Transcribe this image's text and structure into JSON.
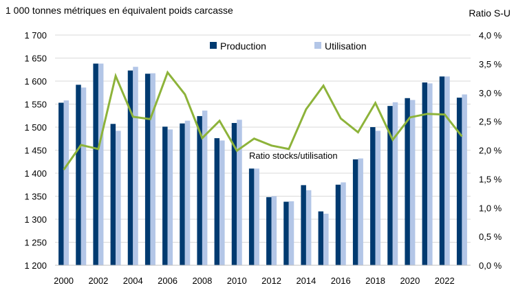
{
  "chart_data": {
    "type": "bar",
    "title": "",
    "ylabel_left": "1 000 tonnes métriques en équivalent poids carcasse",
    "ylabel_right": "Ratio S-U",
    "xlabel": "",
    "ylim_left": [
      1200,
      1700
    ],
    "ylim_right": [
      0.0,
      4.0
    ],
    "yticks_left": [
      "1 200",
      "1 250",
      "1 300",
      "1 350",
      "1 400",
      "1 450",
      "1 500",
      "1 550",
      "1 600",
      "1 650",
      "1 700"
    ],
    "yticks_right": [
      "0,0 %",
      "0,5 %",
      "1,0 %",
      "1,5 %",
      "2,0 %",
      "2,5 %",
      "3,0 %",
      "3,5 %",
      "4,0 %"
    ],
    "xtick_labels": [
      "2000",
      "2002",
      "2004",
      "2006",
      "2008",
      "2010",
      "2012",
      "2014",
      "2016",
      "2018",
      "2020",
      "2022"
    ],
    "categories": [
      2000,
      2001,
      2002,
      2003,
      2004,
      2005,
      2006,
      2007,
      2008,
      2009,
      2010,
      2011,
      2012,
      2013,
      2014,
      2015,
      2016,
      2017,
      2018,
      2019,
      2020,
      2021,
      2022,
      2023
    ],
    "series": [
      {
        "name": "Production",
        "kind": "bar",
        "axis": "left",
        "color": "#003a70",
        "values": [
          1553,
          1592,
          1638,
          1507,
          1623,
          1616,
          1501,
          1508,
          1524,
          1476,
          1509,
          1410,
          1348,
          1338,
          1374,
          1317,
          1375,
          1430,
          1500,
          1546,
          1563,
          1597,
          1610,
          1564
        ]
      },
      {
        "name": "Utilisation",
        "kind": "bar",
        "axis": "left",
        "color": "#b3c6e7",
        "values": [
          1558,
          1586,
          1638,
          1492,
          1631,
          1617,
          1495,
          1514,
          1536,
          1471,
          1516,
          1410,
          1350,
          1339,
          1363,
          1312,
          1380,
          1432,
          1492,
          1554,
          1559,
          1595,
          1610,
          1571
        ]
      },
      {
        "name": "Ratio stocks/utilisation",
        "kind": "line",
        "axis": "right",
        "color": "#8db33a",
        "values": [
          1.66,
          2.09,
          2.02,
          3.29,
          2.58,
          2.54,
          3.35,
          2.97,
          2.21,
          2.51,
          1.99,
          2.2,
          2.08,
          2.02,
          2.71,
          3.12,
          2.55,
          2.31,
          2.82,
          2.18,
          2.57,
          2.63,
          2.62,
          2.24
        ]
      }
    ],
    "annotation": "Ratio stocks/utilisation",
    "legend_position": "top-center",
    "grid": true
  }
}
